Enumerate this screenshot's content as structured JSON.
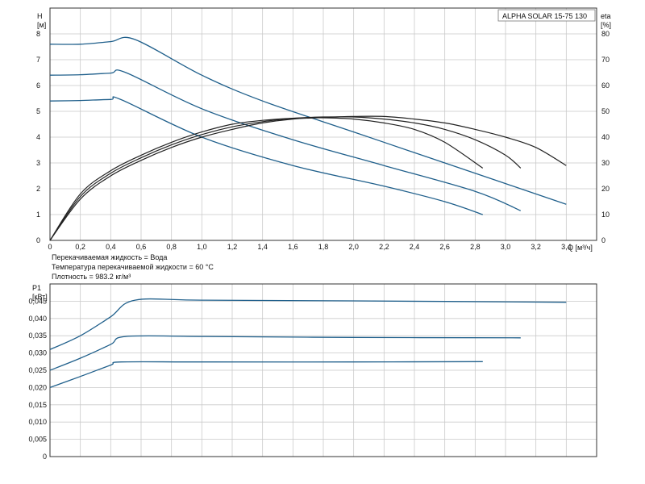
{
  "colors": {
    "head_curves": "#1f5f8b",
    "eta_curves": "#222222",
    "power_curves": "#1f5f8b",
    "grid": "#c9c9c9"
  },
  "chart_data": [
    {
      "type": "line",
      "title": "ALPHA SOLAR 15-75  130",
      "ylabel_name": "H",
      "ylabel_unit": "[м]",
      "y2label_name": "eta",
      "y2label_unit": "[%]",
      "xlabel": "Q [м³/ч]",
      "xlim": [
        0,
        3.6
      ],
      "ylim": [
        0,
        9
      ],
      "y2lim": [
        0,
        90
      ],
      "grid": true,
      "x_ticks": [
        "0",
        "0,2",
        "0,4",
        "0,6",
        "0,8",
        "1,0",
        "1,2",
        "1,4",
        "1,6",
        "1,8",
        "2,0",
        "2,2",
        "2,4",
        "2,6",
        "2,8",
        "3,0",
        "3,2",
        "3,4"
      ],
      "x_tick_values": [
        0,
        0.2,
        0.4,
        0.6,
        0.8,
        1.0,
        1.2,
        1.4,
        1.6,
        1.8,
        2.0,
        2.2,
        2.4,
        2.6,
        2.8,
        3.0,
        3.2,
        3.4
      ],
      "y_ticks": [
        "0",
        "1",
        "2",
        "3",
        "4",
        "5",
        "6",
        "7",
        "8"
      ],
      "y_tick_values": [
        0,
        1,
        2,
        3,
        4,
        5,
        6,
        7,
        8
      ],
      "y2_ticks": [
        "0",
        "10",
        "20",
        "30",
        "40",
        "50",
        "60",
        "70",
        "80"
      ],
      "y2_tick_values": [
        0,
        10,
        20,
        30,
        40,
        50,
        60,
        70,
        80
      ],
      "series": [
        {
          "axis": "left",
          "points": [
            [
              0,
              7.6
            ],
            [
              0.2,
              7.6
            ],
            [
              0.4,
              7.7
            ],
            [
              0.56,
              7.78
            ],
            [
              1.0,
              6.4
            ],
            [
              1.4,
              5.4
            ],
            [
              2.0,
              4.2
            ],
            [
              2.6,
              3.0
            ],
            [
              3.4,
              1.4
            ]
          ]
        },
        {
          "axis": "left",
          "points": [
            [
              0,
              6.4
            ],
            [
              0.2,
              6.42
            ],
            [
              0.4,
              6.48
            ],
            [
              0.5,
              6.5
            ],
            [
              1.0,
              5.1
            ],
            [
              1.6,
              3.9
            ],
            [
              2.2,
              2.9
            ],
            [
              2.8,
              1.9
            ],
            [
              3.1,
              1.15
            ]
          ]
        },
        {
          "axis": "left",
          "points": [
            [
              0,
              5.4
            ],
            [
              0.2,
              5.42
            ],
            [
              0.4,
              5.46
            ],
            [
              0.47,
              5.45
            ],
            [
              1.0,
              4.0
            ],
            [
              1.6,
              2.9
            ],
            [
              2.2,
              2.1
            ],
            [
              2.6,
              1.5
            ],
            [
              2.85,
              1.0
            ]
          ]
        },
        {
          "axis": "right",
          "points": [
            [
              0,
              0
            ],
            [
              0.2,
              16
            ],
            [
              0.4,
              25
            ],
            [
              0.6,
              31
            ],
            [
              0.8,
              36
            ],
            [
              1.0,
              40
            ],
            [
              1.2,
              43
            ],
            [
              1.4,
              45.5
            ],
            [
              1.6,
              47
            ],
            [
              1.8,
              47.6
            ],
            [
              2.0,
              48
            ],
            [
              2.2,
              48
            ],
            [
              2.4,
              47
            ],
            [
              2.6,
              45.5
            ],
            [
              2.8,
              43
            ],
            [
              3.0,
              40
            ],
            [
              3.2,
              36
            ],
            [
              3.4,
              29
            ]
          ]
        },
        {
          "axis": "right",
          "points": [
            [
              0,
              0
            ],
            [
              0.2,
              17
            ],
            [
              0.4,
              26
            ],
            [
              0.6,
              32
            ],
            [
              0.8,
              37
            ],
            [
              1.0,
              41
            ],
            [
              1.2,
              44
            ],
            [
              1.4,
              46
            ],
            [
              1.6,
              47.3
            ],
            [
              1.8,
              47.8
            ],
            [
              2.0,
              47.8
            ],
            [
              2.2,
              47
            ],
            [
              2.4,
              45.5
            ],
            [
              2.6,
              43
            ],
            [
              2.8,
              39
            ],
            [
              3.0,
              33
            ],
            [
              3.1,
              28
            ]
          ]
        },
        {
          "axis": "right",
          "points": [
            [
              0,
              0
            ],
            [
              0.2,
              18
            ],
            [
              0.4,
              27
            ],
            [
              0.6,
              33
            ],
            [
              0.8,
              38
            ],
            [
              1.0,
              42
            ],
            [
              1.2,
              45
            ],
            [
              1.4,
              46.5
            ],
            [
              1.6,
              47.3
            ],
            [
              1.8,
              47.5
            ],
            [
              2.0,
              47
            ],
            [
              2.2,
              45.5
            ],
            [
              2.4,
              43
            ],
            [
              2.6,
              38
            ],
            [
              2.85,
              28
            ]
          ]
        }
      ]
    },
    {
      "type": "line",
      "ylabel_name": "P1",
      "ylabel_unit": "[кВт]",
      "xlim": [
        0,
        3.6
      ],
      "ylim": [
        0,
        0.05
      ],
      "grid": true,
      "y_ticks": [
        "0",
        "0,005",
        "0,010",
        "0,015",
        "0,020",
        "0,025",
        "0,030",
        "0,035",
        "0,040",
        "0,045"
      ],
      "y_tick_values": [
        0,
        0.005,
        0.01,
        0.015,
        0.02,
        0.025,
        0.03,
        0.035,
        0.04,
        0.045
      ],
      "series": [
        {
          "points": [
            [
              0,
              0.031
            ],
            [
              0.2,
              0.035
            ],
            [
              0.4,
              0.0405
            ],
            [
              0.56,
              0.0453
            ],
            [
              1.0,
              0.0453
            ],
            [
              2.0,
              0.0451
            ],
            [
              3.4,
              0.0447
            ]
          ]
        },
        {
          "points": [
            [
              0,
              0.025
            ],
            [
              0.2,
              0.0285
            ],
            [
              0.4,
              0.0325
            ],
            [
              0.5,
              0.0348
            ],
            [
              1.0,
              0.0348
            ],
            [
              2.0,
              0.0345
            ],
            [
              3.1,
              0.0344
            ]
          ]
        },
        {
          "points": [
            [
              0,
              0.02
            ],
            [
              0.2,
              0.0232
            ],
            [
              0.4,
              0.0265
            ],
            [
              0.47,
              0.0274
            ],
            [
              1.0,
              0.0274
            ],
            [
              2.0,
              0.0274
            ],
            [
              2.85,
              0.0275
            ]
          ]
        }
      ]
    }
  ],
  "notes": {
    "liquid": "Перекачиваемая жидкость = Вода",
    "temperature": "Температура перекачиваемой жидкости = 60 °C",
    "density": "Плотность = 983.2 кг/м³"
  }
}
